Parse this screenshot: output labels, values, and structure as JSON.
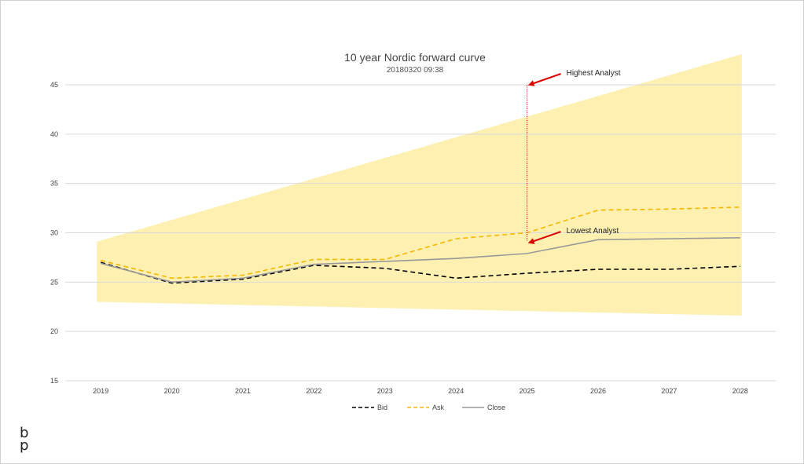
{
  "chart_data": {
    "type": "line",
    "title": "10 year Nordic forward curve",
    "subtitle": "20180320 09:38",
    "xlabel": "",
    "ylabel": "",
    "categories": [
      "2019",
      "2020",
      "2021",
      "2022",
      "2023",
      "2024",
      "2025",
      "2026",
      "2027",
      "2028"
    ],
    "ylim": [
      15,
      45
    ],
    "yticks": [
      15,
      20,
      25,
      30,
      35,
      40,
      45
    ],
    "grid": true,
    "legend_position": "bottom",
    "series": [
      {
        "name": "Bid",
        "style": "dashed",
        "color": "#000000",
        "values": [
          27.0,
          24.9,
          25.3,
          26.7,
          26.4,
          25.4,
          25.9,
          26.3,
          26.3,
          26.6
        ]
      },
      {
        "name": "Ask",
        "style": "dashed",
        "color": "#f5b800",
        "values": [
          27.2,
          25.4,
          25.7,
          27.3,
          27.3,
          29.4,
          30.0,
          32.3,
          32.4,
          32.6
        ]
      },
      {
        "name": "Close",
        "style": "solid",
        "color": "#999999",
        "values": [
          26.9,
          25.0,
          25.4,
          26.8,
          27.1,
          27.4,
          27.9,
          29.3,
          29.4,
          29.5
        ]
      }
    ],
    "band": {
      "color": "#fdf0b0",
      "x_start": "2019",
      "x_end": "2028",
      "upper": [
        29.1,
        48.1
      ],
      "lower": [
        23.0,
        21.6
      ]
    },
    "range_marker": {
      "x": "2025",
      "high": 45.0,
      "low": 29.1,
      "color": "#cc0000"
    },
    "annotations": [
      {
        "text": "Highest Analyst",
        "target_x": "2025",
        "target_y": 45.0,
        "color": "#dd0000"
      },
      {
        "text": "Lowest Analyst",
        "target_x": "2025",
        "target_y": 29.0,
        "color": "#dd0000"
      }
    ]
  },
  "branding": {
    "logo_top": "b",
    "logo_bottom": "p"
  }
}
